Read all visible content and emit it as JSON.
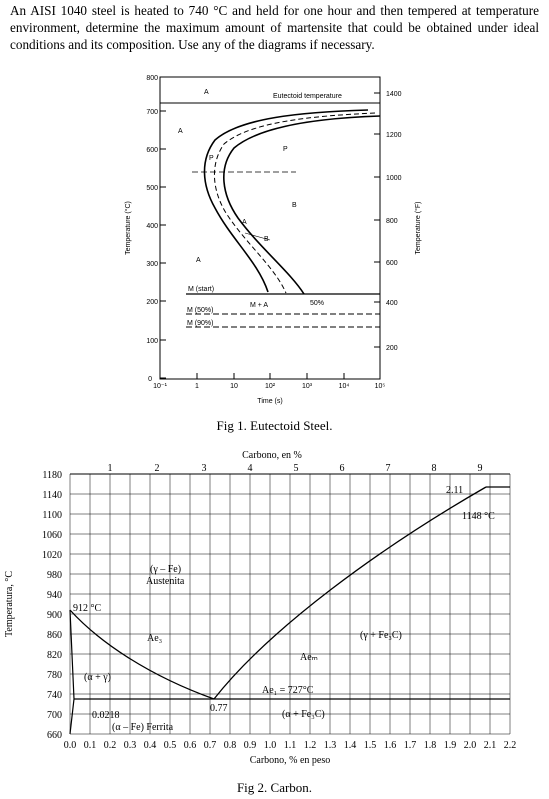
{
  "problem_text": "An AISI 1040 steel is heated to 740 °C and held for one hour and then tempered at temperature environment, determine the maximum amount of martensite that could be obtained under ideal conditions and its composition. Use any of the diagrams if necessary.",
  "fig1": {
    "caption": "Fig 1. Eutectoid Steel.",
    "ylabel_left": "Temperature (°C)",
    "ylabel_right": "Temperature (°F)",
    "xlabel": "Time (s)",
    "yticks_c": [
      "0",
      "100",
      "200",
      "300",
      "400",
      "500",
      "600",
      "700",
      "800"
    ],
    "yticks_f": [
      "200",
      "400",
      "600",
      "800",
      "1000",
      "1200",
      "1400"
    ],
    "xticks": [
      "10⁻¹",
      "1",
      "10",
      "10²",
      "10³",
      "10⁴",
      "10⁵"
    ],
    "labels": {
      "eutectoid": "Eutectoid temperature",
      "a1": "A",
      "a2": "A",
      "a3": "A",
      "p": "P",
      "b": "B",
      "p_small": "P",
      "a_small": "A",
      "b_small": "B",
      "m_start": "M (start)",
      "m_a": "M + A",
      "pct50": "50%",
      "m50": "M (50%)",
      "m90": "M (90%)"
    }
  },
  "fig2": {
    "caption": "Fig 2. Carbon.",
    "top_axis_label": "Carbono, en %",
    "top_ticks": [
      "1",
      "2",
      "3",
      "4",
      "5",
      "6",
      "7",
      "8",
      "9"
    ],
    "yaxis_label": "Temperatura, °C",
    "yticks": [
      "1180",
      "1140",
      "1100",
      "1060",
      "1020",
      "980",
      "940",
      "900",
      "860",
      "820",
      "780",
      "740",
      "700",
      "660"
    ],
    "xticks": [
      "0.0",
      "0.1",
      "0.2",
      "0.3",
      "0.4",
      "0.5",
      "0.6",
      "0.7",
      "0.8",
      "0.9",
      "1.0",
      "1.1",
      "1.2",
      "1.3",
      "1.4",
      "1.5",
      "1.6",
      "1.7",
      "1.8",
      "1.9",
      "2.0",
      "2.1",
      "2.2"
    ],
    "xlabel": "Carbono, % en peso",
    "labels": {
      "gamma_fe": "(γ – Fe)",
      "austenita": "Austenita",
      "t912": "912 °C",
      "ae3": "Ae₃",
      "aecm": "Aeₘ",
      "gamma_fe3c": "(γ + Fe₃C)",
      "alpha_gamma": "(α + γ)",
      "ae1": "Ae₁ = 727°C",
      "c0218": "0.0218",
      "c077": "0.77",
      "alpha_fe3c": "(α + Fe₃C)",
      "ferrita": "(α – Fe) Ferrita",
      "c211": "2.11",
      "t1148": "1148 °C"
    }
  }
}
